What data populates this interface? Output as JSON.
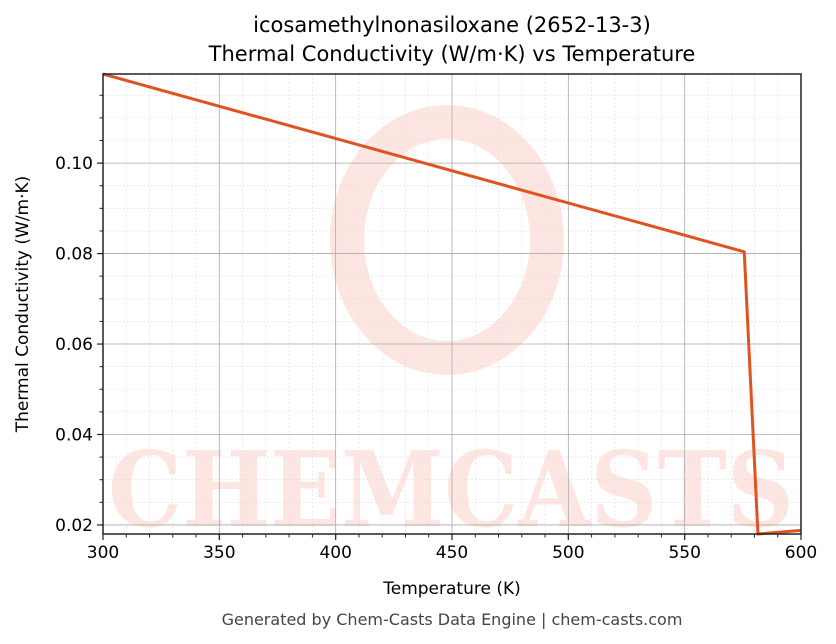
{
  "chart_data": {
    "type": "line",
    "title": "icosamethylnonasiloxane (2652-13-3)",
    "subtitle": "Thermal Conductivity (W/m·K) vs Temperature",
    "xlabel": "Temperature (K)",
    "ylabel": "Thermal Conductivity (W/m·K)",
    "xlim": [
      300,
      600
    ],
    "ylim": [
      0.018,
      0.1197
    ],
    "xticks": [
      300,
      350,
      400,
      450,
      500,
      550,
      600
    ],
    "xtick_labels": [
      "300",
      "350",
      "400",
      "450",
      "500",
      "550",
      "600"
    ],
    "yticks": [
      0.02,
      0.04,
      0.06,
      0.08,
      0.1
    ],
    "ytick_labels": [
      "0.02",
      "0.04",
      "0.06",
      "0.08",
      "0.10"
    ],
    "grid": true,
    "line_color": "#e0531f",
    "series": [
      {
        "x": [
          300,
          575.6,
          581.5,
          600
        ],
        "y": [
          0.1197,
          0.0804,
          0.018,
          0.0188
        ]
      }
    ],
    "watermark": "CHEMCASTS",
    "footer": "Generated by Chem-Casts Data Engine | chem-casts.com"
  }
}
